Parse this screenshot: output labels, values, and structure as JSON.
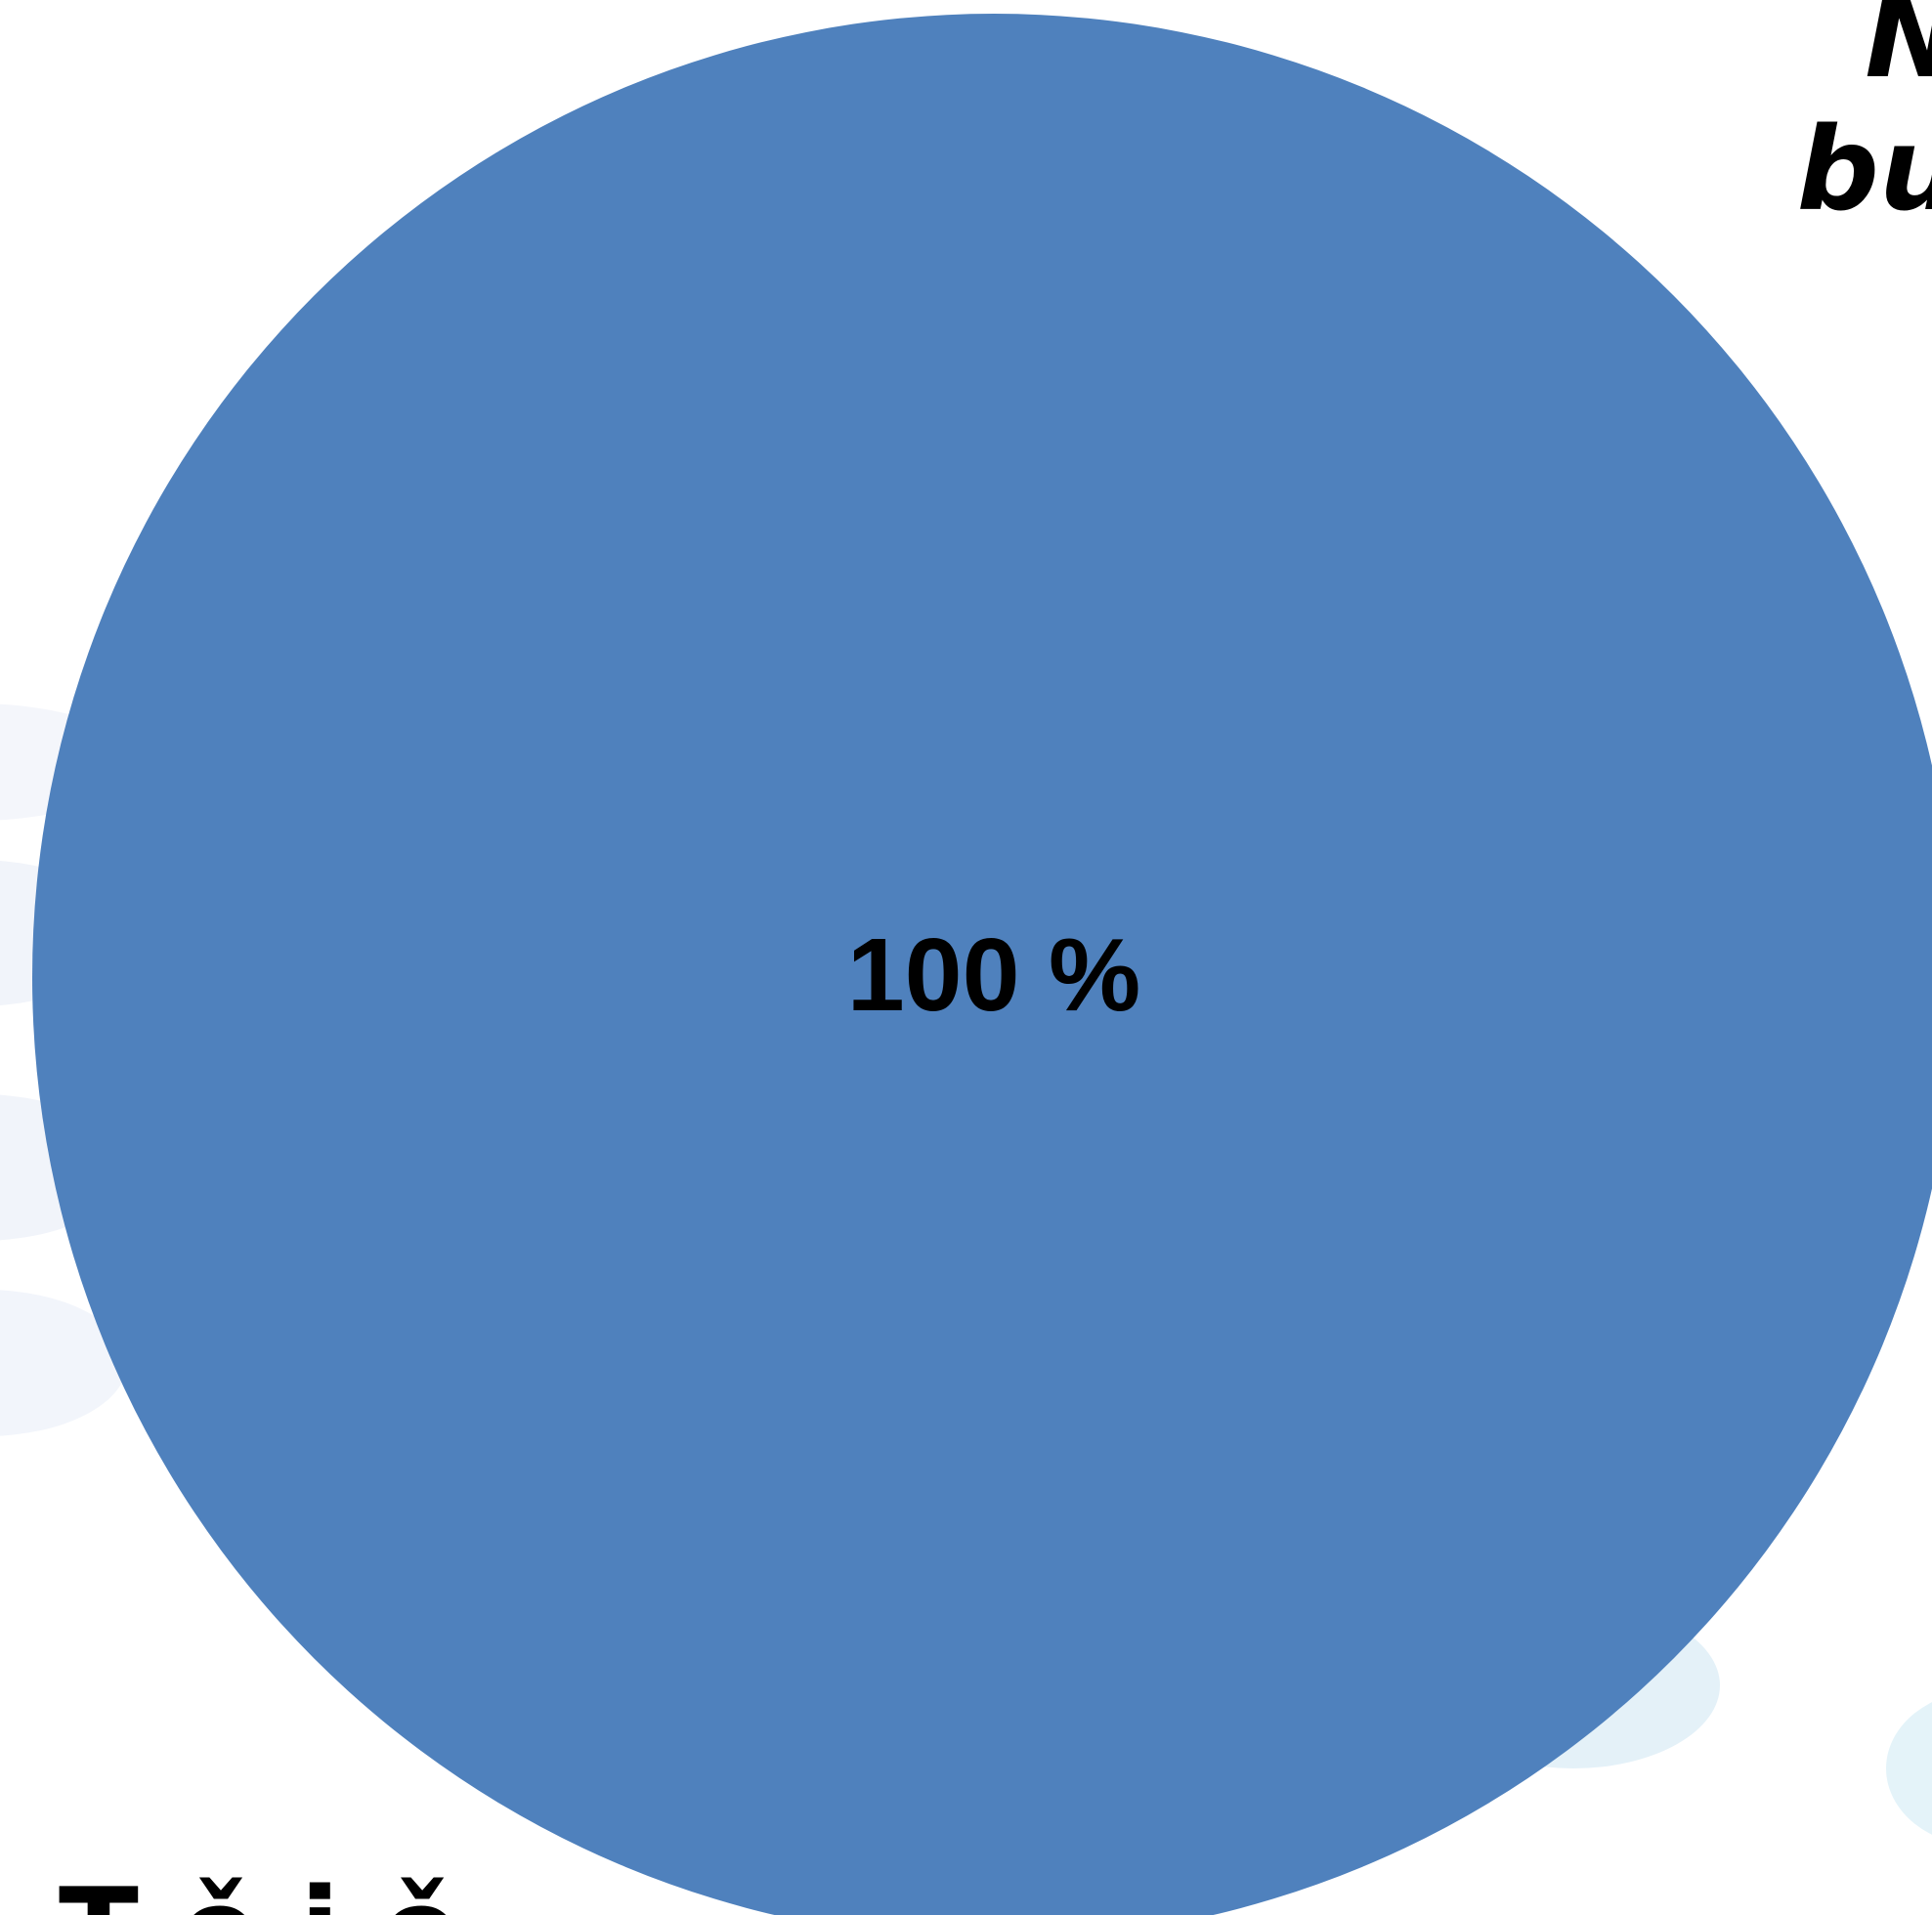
{
  "chart_data": {
    "type": "pie",
    "values": [
      100
    ],
    "data_labels": [
      "100 %"
    ],
    "colors": [
      "#4f81bd"
    ],
    "title_fragment_line1": "N",
    "title_fragment_line2": "bu",
    "caption_fragment": "T  ě i ě"
  }
}
